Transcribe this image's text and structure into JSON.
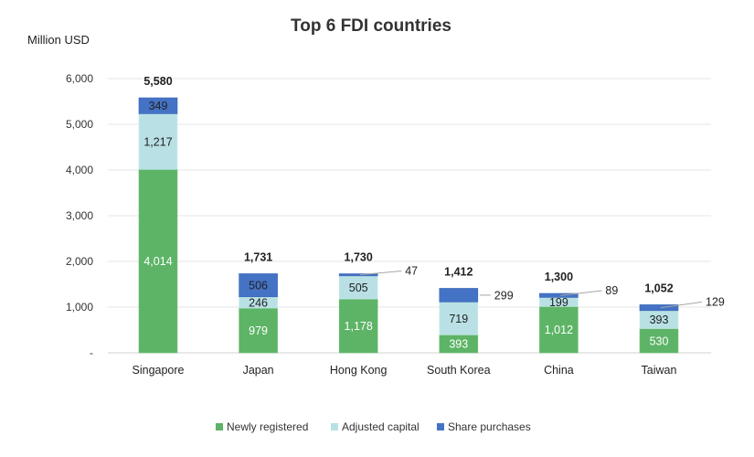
{
  "chart_data": {
    "type": "bar",
    "stacked": true,
    "title": "Top 6 FDI countries",
    "ylabel": "Million USD",
    "xlabel": "",
    "ylim": [
      0,
      6000
    ],
    "yticks": [
      0,
      1000,
      2000,
      3000,
      4000,
      5000,
      6000
    ],
    "ytick_labels": [
      "-",
      "1,000",
      "2,000",
      "3,000",
      "4,000",
      "5,000",
      "6,000"
    ],
    "grid": true,
    "legend": "bottom",
    "categories": [
      "Singapore",
      "Japan",
      "Hong Kong",
      "South Korea",
      "China",
      "Taiwan"
    ],
    "series": [
      {
        "name": "Newly registered",
        "color": "#5db466",
        "values": [
          4014,
          979,
          1178,
          393,
          1012,
          530
        ],
        "labels": [
          "4,014",
          "979",
          "1,178",
          "393",
          "1,012",
          "530"
        ]
      },
      {
        "name": "Adjusted capital",
        "color": "#b9e1e5",
        "values": [
          1217,
          246,
          505,
          719,
          199,
          393
        ],
        "labels": [
          "1,217",
          "246",
          "505",
          "719",
          "199",
          "393"
        ]
      },
      {
        "name": "Share purchases",
        "color": "#4473c5",
        "values": [
          349,
          506,
          47,
          299,
          89,
          129
        ],
        "labels": [
          "349",
          "506",
          "47",
          "299",
          "89",
          "129"
        ]
      }
    ],
    "totals": [
      "5,580",
      "1,731",
      "1,730",
      "1,412",
      "1,300",
      "1,052"
    ]
  }
}
